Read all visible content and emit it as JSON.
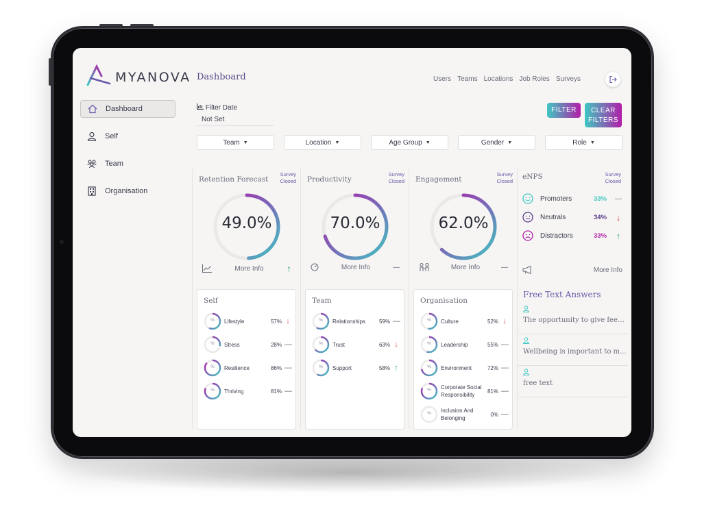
{
  "brand": {
    "name": "MYANOVA"
  },
  "sidebar": {
    "items": [
      {
        "label": "Dashboard",
        "icon": "home-icon",
        "active": true
      },
      {
        "label": "Self",
        "icon": "person-icon",
        "active": false
      },
      {
        "label": "Team",
        "icon": "team-icon",
        "active": false
      },
      {
        "label": "Organisation",
        "icon": "building-icon",
        "active": false
      }
    ]
  },
  "header": {
    "title": "Dashboard",
    "nav": [
      "Users",
      "Teams",
      "Locations",
      "Job Roles",
      "Surveys"
    ],
    "logout_icon": "logout-icon"
  },
  "filters": {
    "date_label": "Filter Date",
    "date_value": "Not Set",
    "filter_button": "FILTER",
    "clear_button_line1": "CLEAR",
    "clear_button_line2": "FILTERS",
    "dropdowns": [
      "Team",
      "Location",
      "Age Group",
      "Gender",
      "Role"
    ]
  },
  "metrics": [
    {
      "title": "Retention Forecast",
      "status1": "Survey",
      "status2": "Closed",
      "value": "49.0%",
      "fraction": 0.49,
      "more": "More Info",
      "trend": "↑",
      "trend_type": "up",
      "icon": "chart-icon"
    },
    {
      "title": "Productivity",
      "status1": "Survey",
      "status2": "Closed",
      "value": "70.0%",
      "fraction": 0.7,
      "more": "More Info",
      "trend": "—",
      "trend_type": "flat",
      "icon": "gauge-icon"
    },
    {
      "title": "Engagement",
      "status1": "Survey",
      "status2": "Closed",
      "value": "62.0%",
      "fraction": 0.62,
      "more": "More Info",
      "trend": "—",
      "trend_type": "flat",
      "icon": "people-icon"
    }
  ],
  "enps": {
    "title": "eNPS",
    "status1": "Survey",
    "status2": "Closed",
    "rows": [
      {
        "label": "Promoters",
        "pct": "33%",
        "trend": "—",
        "trend_type": "flat",
        "color": "#3fc7c2",
        "icon": "happy-face-icon"
      },
      {
        "label": "Neutrals",
        "pct": "34%",
        "trend": "↓",
        "trend_type": "down",
        "color": "#5a3a8a",
        "icon": "neutral-face-icon"
      },
      {
        "label": "Distractors",
        "pct": "33%",
        "trend": "↑",
        "trend_type": "up",
        "color": "#b21ea8",
        "icon": "sad-face-icon"
      }
    ],
    "more": "More Info",
    "megaphone_icon": "megaphone-icon"
  },
  "free_text": {
    "title": "Free Text Answers",
    "items": [
      "The opportunity to give feed...",
      "Wellbeing is important to m...",
      "free text"
    ]
  },
  "breakdowns": [
    {
      "title": "Self",
      "rows": [
        {
          "label": "Lifestyle",
          "pct": "57%",
          "fraction": 0.57,
          "trend": "↓",
          "trend_type": "down"
        },
        {
          "label": "Stress",
          "pct": "28%",
          "fraction": 0.28,
          "trend": "—",
          "trend_type": "flat"
        },
        {
          "label": "Resilience",
          "pct": "86%",
          "fraction": 0.86,
          "trend": "—",
          "trend_type": "flat"
        },
        {
          "label": "Thriving",
          "pct": "81%",
          "fraction": 0.81,
          "trend": "—",
          "trend_type": "flat"
        }
      ]
    },
    {
      "title": "Team",
      "rows": [
        {
          "label": "Relationships",
          "pct": "59%",
          "fraction": 0.59,
          "trend": "—",
          "trend_type": "flat"
        },
        {
          "label": "Trust",
          "pct": "63%",
          "fraction": 0.63,
          "trend": "↓",
          "trend_type": "down"
        },
        {
          "label": "Support",
          "pct": "58%",
          "fraction": 0.58,
          "trend": "↑",
          "trend_type": "up"
        }
      ]
    },
    {
      "title": "Organisation",
      "rows": [
        {
          "label": "Culture",
          "pct": "52%",
          "fraction": 0.52,
          "trend": "↓",
          "trend_type": "down"
        },
        {
          "label": "Leadership",
          "pct": "55%",
          "fraction": 0.55,
          "trend": "—",
          "trend_type": "flat"
        },
        {
          "label": "Environment",
          "pct": "72%",
          "fraction": 0.72,
          "trend": "—",
          "trend_type": "flat"
        },
        {
          "label": "Corporate Social Responsibility",
          "pct": "81%",
          "fraction": 0.81,
          "trend": "—",
          "trend_type": "flat"
        },
        {
          "label": "Inclusion And Belonging",
          "pct": "0%",
          "fraction": 0,
          "trend": "—",
          "trend_type": "flat"
        }
      ]
    }
  ],
  "mini_ring_symbol": "%",
  "colors": {
    "teal": "#3fc7c2",
    "purple": "#6a58a8",
    "magenta": "#b21ea8",
    "up": "#2fa57e",
    "down": "#e0474c"
  }
}
